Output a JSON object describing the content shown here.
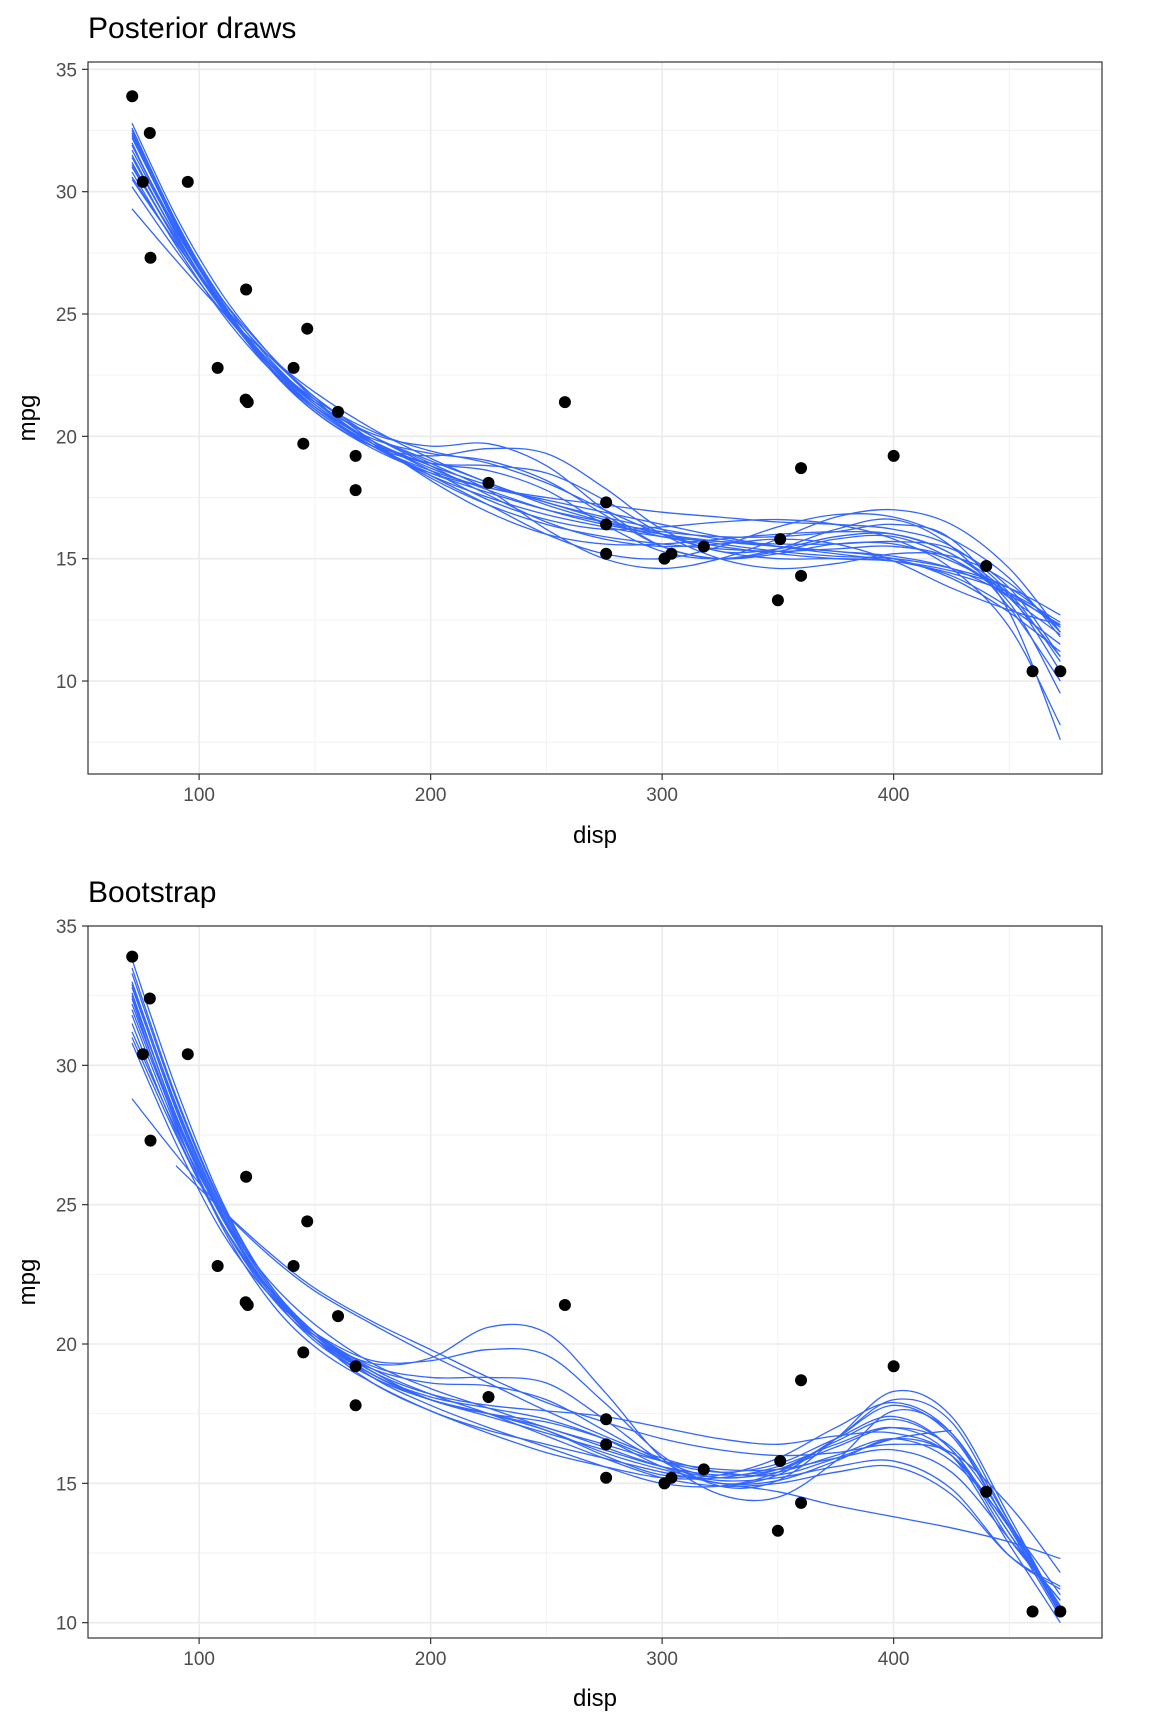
{
  "accent_color": "#3366FF",
  "point_color": "#000000",
  "chart_data": [
    {
      "type": "line",
      "title": "Posterior draws",
      "xlabel": "disp",
      "ylabel": "mpg",
      "xlim": [
        52,
        490
      ],
      "ylim": [
        6.2,
        35.3
      ],
      "x_ticks": [
        100,
        200,
        300,
        400
      ],
      "y_ticks": [
        10,
        15,
        20,
        25,
        30,
        35
      ],
      "grid": true,
      "points": [
        {
          "x": 71.1,
          "y": 33.9
        },
        {
          "x": 75.7,
          "y": 30.4
        },
        {
          "x": 78.7,
          "y": 32.4
        },
        {
          "x": 79.0,
          "y": 27.3
        },
        {
          "x": 95.1,
          "y": 30.4
        },
        {
          "x": 108.0,
          "y": 22.8
        },
        {
          "x": 120.1,
          "y": 21.5
        },
        {
          "x": 120.3,
          "y": 26.0
        },
        {
          "x": 121.0,
          "y": 21.4
        },
        {
          "x": 140.8,
          "y": 22.8
        },
        {
          "x": 145.0,
          "y": 19.7
        },
        {
          "x": 146.7,
          "y": 24.4
        },
        {
          "x": 160.0,
          "y": 21.0
        },
        {
          "x": 167.6,
          "y": 19.2
        },
        {
          "x": 167.6,
          "y": 17.8
        },
        {
          "x": 225.0,
          "y": 18.1
        },
        {
          "x": 258.0,
          "y": 21.4
        },
        {
          "x": 275.8,
          "y": 16.4
        },
        {
          "x": 275.8,
          "y": 17.3
        },
        {
          "x": 275.8,
          "y": 15.2
        },
        {
          "x": 301.0,
          "y": 15.0
        },
        {
          "x": 304.0,
          "y": 15.2
        },
        {
          "x": 318.0,
          "y": 15.5
        },
        {
          "x": 350.0,
          "y": 13.3
        },
        {
          "x": 351.0,
          "y": 15.8
        },
        {
          "x": 360.0,
          "y": 14.3
        },
        {
          "x": 360.0,
          "y": 18.7
        },
        {
          "x": 400.0,
          "y": 19.2
        },
        {
          "x": 440.0,
          "y": 14.7
        },
        {
          "x": 460.0,
          "y": 10.4
        },
        {
          "x": 472.0,
          "y": 10.4
        }
      ],
      "curve_x": [
        71,
        90,
        110,
        130,
        150,
        175,
        200,
        225,
        250,
        275,
        300,
        325,
        350,
        375,
        400,
        425,
        450,
        472
      ],
      "series": [
        {
          "values": [
            32.2,
            28.7,
            25.6,
            23.2,
            21.4,
            19.8,
            18.7,
            17.8,
            17.0,
            16.4,
            16.0,
            15.7,
            15.5,
            15.3,
            15.0,
            14.2,
            12.8,
            11.2
          ]
        },
        {
          "values": [
            31.5,
            28.2,
            25.2,
            22.9,
            21.1,
            19.6,
            18.6,
            17.9,
            17.4,
            16.9,
            16.4,
            15.9,
            15.5,
            15.2,
            14.9,
            14.4,
            13.6,
            12.4
          ]
        },
        {
          "values": [
            32.8,
            29.0,
            25.8,
            23.4,
            21.5,
            19.7,
            18.3,
            17.2,
            16.4,
            15.9,
            15.6,
            15.4,
            15.3,
            15.4,
            15.5,
            15.0,
            13.2,
            9.5
          ]
        },
        {
          "values": [
            30.8,
            27.8,
            25.0,
            22.8,
            21.2,
            19.8,
            18.8,
            18.0,
            17.3,
            16.6,
            16.0,
            15.6,
            15.3,
            15.1,
            15.0,
            14.6,
            13.8,
            12.2
          ]
        },
        {
          "values": [
            31.9,
            28.5,
            25.4,
            23.0,
            21.2,
            19.7,
            18.9,
            18.6,
            17.8,
            16.4,
            15.3,
            15.0,
            15.4,
            16.2,
            16.6,
            15.5,
            13.0,
            10.0
          ]
        },
        {
          "values": [
            32.4,
            28.6,
            25.3,
            22.8,
            21.0,
            19.6,
            19.2,
            19.5,
            19.3,
            17.9,
            16.2,
            15.3,
            15.4,
            15.9,
            16.0,
            15.2,
            13.4,
            11.0
          ]
        },
        {
          "values": [
            31.2,
            28.0,
            25.2,
            23.0,
            21.3,
            19.7,
            18.4,
            17.2,
            16.0,
            15.2,
            15.0,
            15.5,
            16.3,
            16.8,
            16.7,
            15.8,
            14.2,
            11.8
          ]
        },
        {
          "values": [
            29.3,
            27.2,
            25.1,
            23.3,
            21.8,
            20.3,
            19.1,
            18.1,
            17.3,
            16.7,
            16.2,
            15.8,
            15.5,
            15.3,
            15.1,
            14.6,
            13.5,
            12.3
          ]
        },
        {
          "values": [
            30.2,
            27.6,
            25.1,
            23.0,
            21.4,
            20.0,
            18.9,
            17.8,
            16.2,
            15.0,
            14.6,
            15.0,
            15.8,
            16.7,
            17.0,
            16.4,
            14.6,
            12.0
          ]
        },
        {
          "values": [
            32.0,
            28.3,
            25.2,
            22.9,
            21.2,
            19.9,
            19.3,
            19.0,
            18.2,
            16.8,
            15.5,
            15.0,
            15.2,
            15.6,
            15.6,
            14.9,
            13.6,
            12.2
          ]
        },
        {
          "values": [
            31.7,
            28.4,
            25.6,
            23.4,
            21.6,
            19.8,
            18.2,
            16.9,
            16.0,
            15.6,
            15.6,
            15.8,
            16.0,
            16.1,
            16.0,
            15.2,
            13.5,
            10.4
          ]
        },
        {
          "values": [
            30.5,
            27.9,
            25.4,
            23.3,
            21.6,
            20.0,
            18.8,
            17.6,
            16.5,
            15.8,
            15.5,
            15.6,
            15.8,
            15.6,
            14.9,
            13.8,
            12.9,
            12.3
          ]
        },
        {
          "values": [
            32.6,
            28.8,
            25.5,
            22.9,
            21.0,
            19.5,
            18.5,
            17.9,
            17.5,
            17.2,
            16.9,
            16.7,
            16.5,
            16.4,
            16.2,
            15.5,
            13.6,
            10.8
          ]
        },
        {
          "values": [
            31.0,
            28.1,
            25.3,
            23.1,
            21.4,
            20.0,
            19.0,
            18.1,
            17.2,
            16.5,
            15.9,
            15.5,
            15.2,
            15.0,
            14.9,
            14.5,
            13.8,
            12.7
          ]
        },
        {
          "values": [
            32.3,
            28.6,
            25.4,
            22.9,
            21.0,
            19.6,
            18.9,
            18.8,
            18.5,
            17.4,
            16.0,
            15.0,
            14.6,
            14.8,
            15.2,
            15.1,
            14.0,
            12.0
          ]
        },
        {
          "values": [
            31.4,
            28.2,
            25.3,
            23.1,
            21.3,
            19.8,
            18.6,
            17.4,
            16.6,
            16.2,
            16.3,
            16.5,
            16.6,
            16.4,
            15.8,
            14.6,
            12.2,
            8.2
          ]
        },
        {
          "values": [
            30.6,
            27.9,
            25.3,
            23.1,
            21.5,
            20.2,
            19.4,
            18.9,
            18.1,
            17.0,
            16.0,
            15.3,
            15.0,
            15.0,
            14.9,
            14.3,
            13.0,
            11.5
          ]
        },
        {
          "values": [
            31.9,
            28.4,
            25.4,
            23.0,
            21.2,
            19.6,
            18.4,
            17.5,
            16.8,
            16.3,
            15.9,
            15.7,
            15.6,
            15.6,
            15.7,
            15.4,
            13.8,
            11.0
          ]
        },
        {
          "values": [
            32.5,
            28.7,
            25.4,
            22.9,
            21.1,
            19.6,
            18.5,
            17.7,
            17.0,
            16.5,
            16.1,
            15.9,
            15.9,
            16.1,
            16.4,
            15.8,
            12.8,
            7.6
          ]
        },
        {
          "values": [
            31.1,
            28.0,
            25.2,
            23.0,
            21.4,
            20.1,
            19.6,
            19.7,
            18.8,
            17.0,
            15.5,
            15.0,
            15.3,
            15.8,
            15.9,
            15.0,
            13.4,
            11.9
          ]
        }
      ]
    },
    {
      "type": "line",
      "title": "Bootstrap",
      "xlabel": "disp",
      "ylabel": "mpg",
      "xlim": [
        52,
        490
      ],
      "ylim": [
        9.45,
        35.0
      ],
      "x_ticks": [
        100,
        200,
        300,
        400
      ],
      "y_ticks": [
        10,
        15,
        20,
        25,
        30,
        35
      ],
      "grid": true,
      "points": [
        {
          "x": 71.1,
          "y": 33.9
        },
        {
          "x": 75.7,
          "y": 30.4
        },
        {
          "x": 78.7,
          "y": 32.4
        },
        {
          "x": 79.0,
          "y": 27.3
        },
        {
          "x": 95.1,
          "y": 30.4
        },
        {
          "x": 108.0,
          "y": 22.8
        },
        {
          "x": 120.1,
          "y": 21.5
        },
        {
          "x": 120.3,
          "y": 26.0
        },
        {
          "x": 121.0,
          "y": 21.4
        },
        {
          "x": 140.8,
          "y": 22.8
        },
        {
          "x": 145.0,
          "y": 19.7
        },
        {
          "x": 146.7,
          "y": 24.4
        },
        {
          "x": 160.0,
          "y": 21.0
        },
        {
          "x": 167.6,
          "y": 19.2
        },
        {
          "x": 167.6,
          "y": 17.8
        },
        {
          "x": 225.0,
          "y": 18.1
        },
        {
          "x": 258.0,
          "y": 21.4
        },
        {
          "x": 275.8,
          "y": 16.4
        },
        {
          "x": 275.8,
          "y": 17.3
        },
        {
          "x": 275.8,
          "y": 15.2
        },
        {
          "x": 301.0,
          "y": 15.0
        },
        {
          "x": 304.0,
          "y": 15.2
        },
        {
          "x": 318.0,
          "y": 15.5
        },
        {
          "x": 350.0,
          "y": 13.3
        },
        {
          "x": 351.0,
          "y": 15.8
        },
        {
          "x": 360.0,
          "y": 14.3
        },
        {
          "x": 360.0,
          "y": 18.7
        },
        {
          "x": 400.0,
          "y": 19.2
        },
        {
          "x": 440.0,
          "y": 14.7
        },
        {
          "x": 460.0,
          "y": 10.4
        },
        {
          "x": 472.0,
          "y": 10.4
        }
      ],
      "curve_x": [
        71,
        90,
        110,
        130,
        150,
        175,
        200,
        225,
        250,
        275,
        300,
        325,
        350,
        375,
        400,
        425,
        450,
        472
      ],
      "series": [
        {
          "values": [
            32.5,
            28.2,
            24.6,
            22.0,
            20.4,
            19.0,
            18.0,
            17.5,
            17.2,
            16.6,
            15.8,
            15.4,
            15.7,
            16.6,
            17.4,
            16.2,
            13.0,
            10.8
          ]
        },
        {
          "values": [
            33.5,
            28.9,
            25.0,
            22.2,
            20.4,
            18.9,
            18.0,
            17.5,
            16.9,
            16.0,
            15.3,
            15.3,
            15.9,
            17.0,
            17.9,
            16.8,
            13.4,
            10.3
          ]
        },
        {
          "values": [
            31.8,
            27.8,
            24.3,
            21.8,
            20.2,
            19.1,
            18.6,
            18.5,
            18.0,
            16.9,
            15.8,
            15.2,
            15.5,
            16.5,
            17.3,
            16.2,
            13.2,
            10.6
          ]
        },
        {
          "values": [
            30.8,
            27.2,
            24.0,
            21.8,
            20.4,
            19.4,
            19.4,
            19.8,
            19.6,
            17.9,
            16.0,
            14.9,
            15.1,
            16.6,
            18.3,
            17.4,
            13.8,
            10.4
          ]
        },
        {
          "values": [
            32.9,
            28.4,
            24.6,
            21.9,
            20.1,
            18.8,
            18.0,
            17.5,
            16.9,
            16.1,
            15.5,
            15.1,
            15.2,
            15.6,
            15.8,
            14.8,
            12.4,
            11.2
          ]
        },
        {
          "values": [
            32.2,
            28.1,
            24.6,
            22.0,
            20.2,
            18.8,
            18.0,
            17.5,
            17.0,
            16.3,
            15.6,
            15.2,
            15.4,
            16.0,
            16.6,
            15.8,
            13.5,
            11.0
          ]
        },
        {
          "values": [
            31.5,
            27.6,
            24.3,
            21.9,
            20.3,
            19.3,
            19.5,
            20.6,
            20.4,
            18.3,
            15.9,
            14.6,
            14.5,
            15.8,
            17.6,
            16.8,
            13.6,
            10.5
          ]
        },
        {
          "values": [
            33.0,
            28.6,
            24.8,
            22.1,
            20.4,
            19.0,
            18.2,
            17.8,
            17.6,
            17.4,
            17.0,
            16.6,
            16.4,
            16.7,
            16.8,
            16.0,
            13.2,
            10.2
          ]
        },
        {
          "values": [
            32.4,
            27.9,
            24.2,
            21.6,
            19.9,
            18.6,
            17.6,
            16.8,
            16.1,
            15.6,
            15.2,
            15.2,
            15.6,
            16.4,
            17.0,
            16.0,
            12.8,
            10.0
          ]
        },
        {
          "values": [
            33.8,
            29.2,
            25.1,
            22.2,
            20.4,
            18.8,
            17.8,
            17.0,
            16.3,
            15.6,
            15.0,
            14.9,
            15.4,
            16.6,
            18.0,
            17.2,
            13.6,
            10.3
          ]
        },
        {
          "values": [
            32.0,
            28.0,
            24.5,
            22.0,
            20.4,
            19.2,
            18.8,
            18.8,
            18.6,
            17.3,
            15.8,
            15.0,
            15.3,
            16.6,
            17.8,
            16.7,
            13.4,
            10.4
          ]
        },
        {
          "values": [
            31.2,
            27.7,
            24.6,
            22.3,
            20.7,
            19.3,
            18.4,
            17.7,
            17.0,
            16.4,
            15.8,
            15.5,
            15.5,
            15.9,
            16.2,
            15.4,
            13.0,
            10.8
          ]
        },
        {
          "values": [
            32.6,
            28.2,
            24.6,
            22.0,
            20.2,
            18.9,
            18.0,
            17.4,
            16.8,
            16.2,
            15.6,
            15.3,
            15.5,
            16.3,
            17.0,
            16.3,
            13.5,
            10.5
          ]
        },
        {
          "values": [
            28.8,
            26.8,
            24.8,
            23.2,
            21.9,
            20.7,
            19.6,
            18.6,
            17.6,
            16.7,
            15.9,
            15.4,
            15.3,
            15.9,
            16.6,
            16.9,
            null,
            null
          ]
        },
        {
          "values": [
            null,
            26.4,
            24.8,
            23.3,
            22.0,
            20.8,
            19.8,
            18.8,
            17.9,
            17.2,
            16.6,
            16.2,
            16.0,
            16.1,
            16.4,
            16.1,
            14.2,
            11.8
          ]
        },
        {
          "values": [
            32.8,
            28.5,
            24.7,
            22.0,
            20.3,
            18.9,
            18.1,
            17.7,
            17.3,
            16.6,
            15.6,
            15.0,
            15.1,
            15.8,
            16.6,
            16.0,
            13.4,
            10.6
          ]
        },
        {
          "values": [
            31.0,
            27.5,
            24.3,
            22.0,
            20.4,
            19.1,
            18.2,
            17.5,
            16.7,
            15.9,
            15.2,
            14.9,
            15.0,
            15.4,
            15.6,
            14.6,
            12.4,
            11.3
          ]
        },
        {
          "values": [
            33.3,
            28.8,
            24.9,
            22.1,
            20.2,
            18.6,
            17.6,
            16.9,
            16.4,
            15.9,
            15.4,
            15.0,
            14.7,
            14.2,
            13.8,
            13.4,
            12.9,
            12.3
          ]
        }
      ]
    }
  ]
}
